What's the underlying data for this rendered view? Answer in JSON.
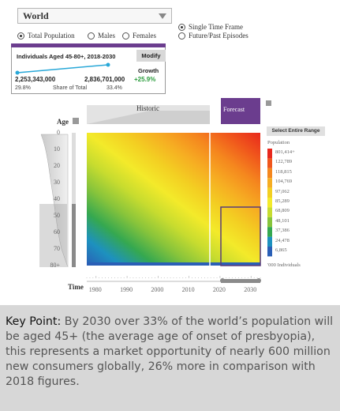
{
  "controls": {
    "region": "World",
    "population_options": [
      "Total Population",
      "Males",
      "Females"
    ],
    "selected_population": 0,
    "frame_options": [
      "Single Time Frame",
      "Future/Past Episodes"
    ],
    "selected_frame": 0
  },
  "info_box": {
    "title": "Individuals Aged 45-80+, 2018-2030",
    "modify_label": "Modify",
    "growth_label": "Growth",
    "start_value": "2,253,343,000",
    "end_value": "2,836,701,000",
    "growth_value": "+25.9%",
    "start_share": "29.8%",
    "share_label": "Share of Total",
    "end_share": "33.4%"
  },
  "chart_data": {
    "type": "heatmap",
    "xlabel": "Time",
    "ylabel": "Age",
    "x_ticks": [
      "1980",
      "1990",
      "2000",
      "2010",
      "2020",
      "2030"
    ],
    "y_ticks": [
      "0",
      "10",
      "20",
      "30",
      "40",
      "50",
      "60",
      "70",
      "80+"
    ],
    "x_range": [
      1977,
      2033
    ],
    "y_range": [
      0,
      80
    ],
    "section_labels": [
      "Historic",
      "Forecast"
    ],
    "legend_title": "Population",
    "legend_values": [
      "801,414+",
      "122,789",
      "118,815",
      "104,769",
      "97,062",
      "85,289",
      "68,809",
      "48,101",
      "37,386",
      "24,478",
      "6,865"
    ],
    "legend_colors": [
      "#e8281c",
      "#f0561c",
      "#f5871e",
      "#f6ad22",
      "#f3cf22",
      "#f3ea2a",
      "#c7dc2f",
      "#87c43b",
      "#35a850",
      "#1d91bf",
      "#2a5fb6"
    ],
    "legend_unit": "'000 Individuals",
    "select_range_label": "Select Entire Range"
  },
  "footer": {
    "key_label": "Key Point:",
    "text": " By 2030 over 33% of the world’s population will be aged 45+ (the average age of onset of presbyopia), this represents a market opportunity of nearly 600 million new consumers globally, 26% more in comparison with 2018 figures."
  }
}
